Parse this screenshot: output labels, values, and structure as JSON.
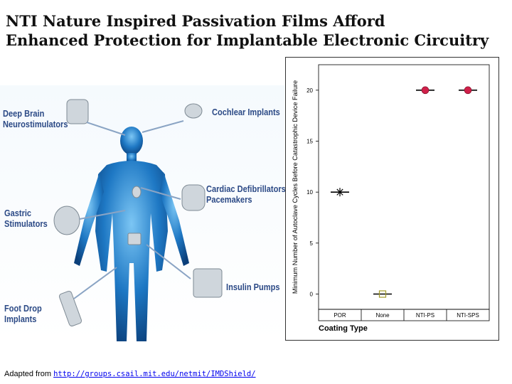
{
  "slide": {
    "title_line1": "NTI Nature Inspired Passivation Films Afford",
    "title_line2": "Enhanced Protection for Implantable Electronic Circuitry"
  },
  "illustration": {
    "labels": {
      "deep_brain": [
        "Deep Brain",
        "Neurostimulators"
      ],
      "cochlear": [
        "Cochlear Implants"
      ],
      "cardiac": [
        "Cardiac Defibrillators/",
        "Pacemakers"
      ],
      "gastric": [
        "Gastric",
        "Stimulators"
      ],
      "insulin": [
        "Insulin  Pumps"
      ],
      "foot_drop": [
        "Foot Drop",
        "Implants"
      ]
    },
    "colors": {
      "body": "#1e78c4",
      "body_glow": "#5ab0ec",
      "label": "#2c4a86"
    }
  },
  "chart_data": {
    "type": "scatter",
    "title": "",
    "xlabel": "Coating Type",
    "ylabel": "Minimum Number of  Autoclave Cycles Before Catastrophic Device Failure",
    "categories": [
      "POR",
      "None",
      "NTI-PS",
      "NTI-SPS"
    ],
    "values": [
      10,
      0,
      20,
      20
    ],
    "markers": [
      "asterisk",
      "open-square",
      "filled-circle",
      "filled-circle"
    ],
    "marker_colors": [
      "#000000",
      "#a09a2a",
      "#d0204a",
      "#d0204a"
    ],
    "ylim": [
      -1.5,
      22.5
    ],
    "yticks": [
      0,
      5,
      10,
      15,
      20
    ],
    "grid": false,
    "median_bars": true
  },
  "footer": {
    "prefix": "Adapted from ",
    "link": "http://groups.csail.mit.edu/netmit/IMDShield/"
  }
}
